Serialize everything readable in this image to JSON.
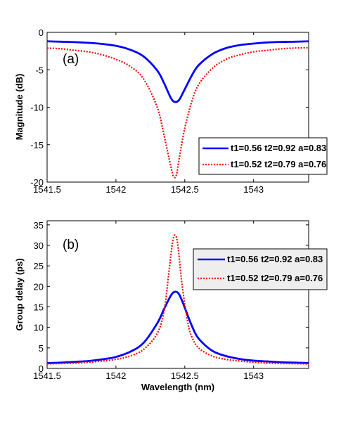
{
  "chart_data": [
    {
      "type": "line",
      "panel_label": "(a)",
      "xlabel": "",
      "ylabel": "Magnitude (dB)",
      "xlim": [
        1541.5,
        1543.4
      ],
      "ylim": [
        -20,
        0
      ],
      "xticks": [
        1541.5,
        1542,
        1542.5,
        1543
      ],
      "xtick_labels": [
        "1541.5",
        "1542",
        "1542.5",
        "1543"
      ],
      "yticks": [
        0,
        -5,
        -10,
        -15,
        -20
      ],
      "ytick_labels": [
        "0",
        "-5",
        "-10",
        "-15",
        "-20"
      ],
      "legend_position": "lower-right",
      "series": [
        {
          "name": "t1=0.56 t2=0.92 a=0.83",
          "color": "#0000ff",
          "style": "solid",
          "x": [
            1541.5,
            1541.6,
            1541.7,
            1541.8,
            1541.9,
            1542.0,
            1542.1,
            1542.2,
            1542.3,
            1542.35,
            1542.4,
            1542.43,
            1542.46,
            1542.5,
            1542.55,
            1542.6,
            1542.7,
            1542.8,
            1542.9,
            1543.0,
            1543.1,
            1543.2,
            1543.3,
            1543.4
          ],
          "y": [
            -1.2,
            -1.25,
            -1.3,
            -1.4,
            -1.55,
            -1.8,
            -2.3,
            -3.2,
            -5.1,
            -6.8,
            -8.8,
            -9.3,
            -9.0,
            -7.6,
            -5.8,
            -4.4,
            -2.9,
            -2.1,
            -1.7,
            -1.5,
            -1.35,
            -1.28,
            -1.25,
            -1.2
          ]
        },
        {
          "name": "t1=0.52 t2=0.79 a=0.76",
          "color": "#ff0000",
          "style": "dotted",
          "x": [
            1541.5,
            1541.6,
            1541.7,
            1541.8,
            1541.9,
            1542.0,
            1542.1,
            1542.2,
            1542.3,
            1542.35,
            1542.4,
            1542.42,
            1542.44,
            1542.46,
            1542.5,
            1542.55,
            1542.6,
            1542.7,
            1542.8,
            1542.9,
            1543.0,
            1543.1,
            1543.2,
            1543.3,
            1543.4
          ],
          "y": [
            -2.1,
            -2.2,
            -2.4,
            -2.6,
            -3.0,
            -3.6,
            -4.5,
            -6.2,
            -10.0,
            -13.8,
            -18.0,
            -19.3,
            -19.0,
            -16.8,
            -12.8,
            -9.3,
            -7.0,
            -4.8,
            -3.6,
            -3.0,
            -2.6,
            -2.4,
            -2.2,
            -2.1,
            -2.05
          ]
        }
      ]
    },
    {
      "type": "line",
      "panel_label": "(b)",
      "xlabel": "Wavelength (nm)",
      "ylabel": "Group delay (ps)",
      "xlim": [
        1541.5,
        1543.4
      ],
      "ylim": [
        0,
        36
      ],
      "xticks": [
        1541.5,
        1542,
        1542.5,
        1543
      ],
      "xtick_labels": [
        "1541.5",
        "1542",
        "1542.5",
        "1543"
      ],
      "yticks": [
        0,
        5,
        10,
        15,
        20,
        25,
        30,
        35
      ],
      "ytick_labels": [
        "0",
        "5",
        "10",
        "15",
        "20",
        "25",
        "30",
        "35"
      ],
      "legend_position": "top-right",
      "series": [
        {
          "name": "t1=0.56 t2=0.92 a=0.83",
          "color": "#0000ff",
          "style": "solid",
          "x": [
            1541.5,
            1541.6,
            1541.7,
            1541.8,
            1541.9,
            1542.0,
            1542.1,
            1542.2,
            1542.3,
            1542.35,
            1542.4,
            1542.43,
            1542.46,
            1542.5,
            1542.55,
            1542.6,
            1542.7,
            1542.8,
            1542.9,
            1543.0,
            1543.1,
            1543.2,
            1543.3,
            1543.4
          ],
          "y": [
            1.3,
            1.4,
            1.6,
            1.8,
            2.2,
            2.8,
            4.0,
            6.2,
            11.0,
            14.5,
            17.8,
            18.7,
            18.0,
            14.8,
            10.5,
            7.3,
            4.3,
            3.0,
            2.3,
            1.9,
            1.7,
            1.5,
            1.4,
            1.3
          ]
        },
        {
          "name": "t1=0.52 t2=0.79 a=0.76",
          "color": "#ff0000",
          "style": "dotted",
          "x": [
            1541.5,
            1541.6,
            1541.7,
            1541.8,
            1541.9,
            1542.0,
            1542.1,
            1542.2,
            1542.3,
            1542.35,
            1542.38,
            1542.41,
            1542.43,
            1542.45,
            1542.48,
            1542.52,
            1542.55,
            1542.6,
            1542.7,
            1542.8,
            1542.9,
            1543.0,
            1543.1,
            1543.2,
            1543.3,
            1543.4
          ],
          "y": [
            1.1,
            1.2,
            1.3,
            1.5,
            1.8,
            2.2,
            3.0,
            4.6,
            8.5,
            14.0,
            22.0,
            30.5,
            32.5,
            30.0,
            20.5,
            11.5,
            7.8,
            5.0,
            3.0,
            2.2,
            1.8,
            1.5,
            1.3,
            1.2,
            1.15,
            1.1
          ]
        }
      ]
    }
  ]
}
